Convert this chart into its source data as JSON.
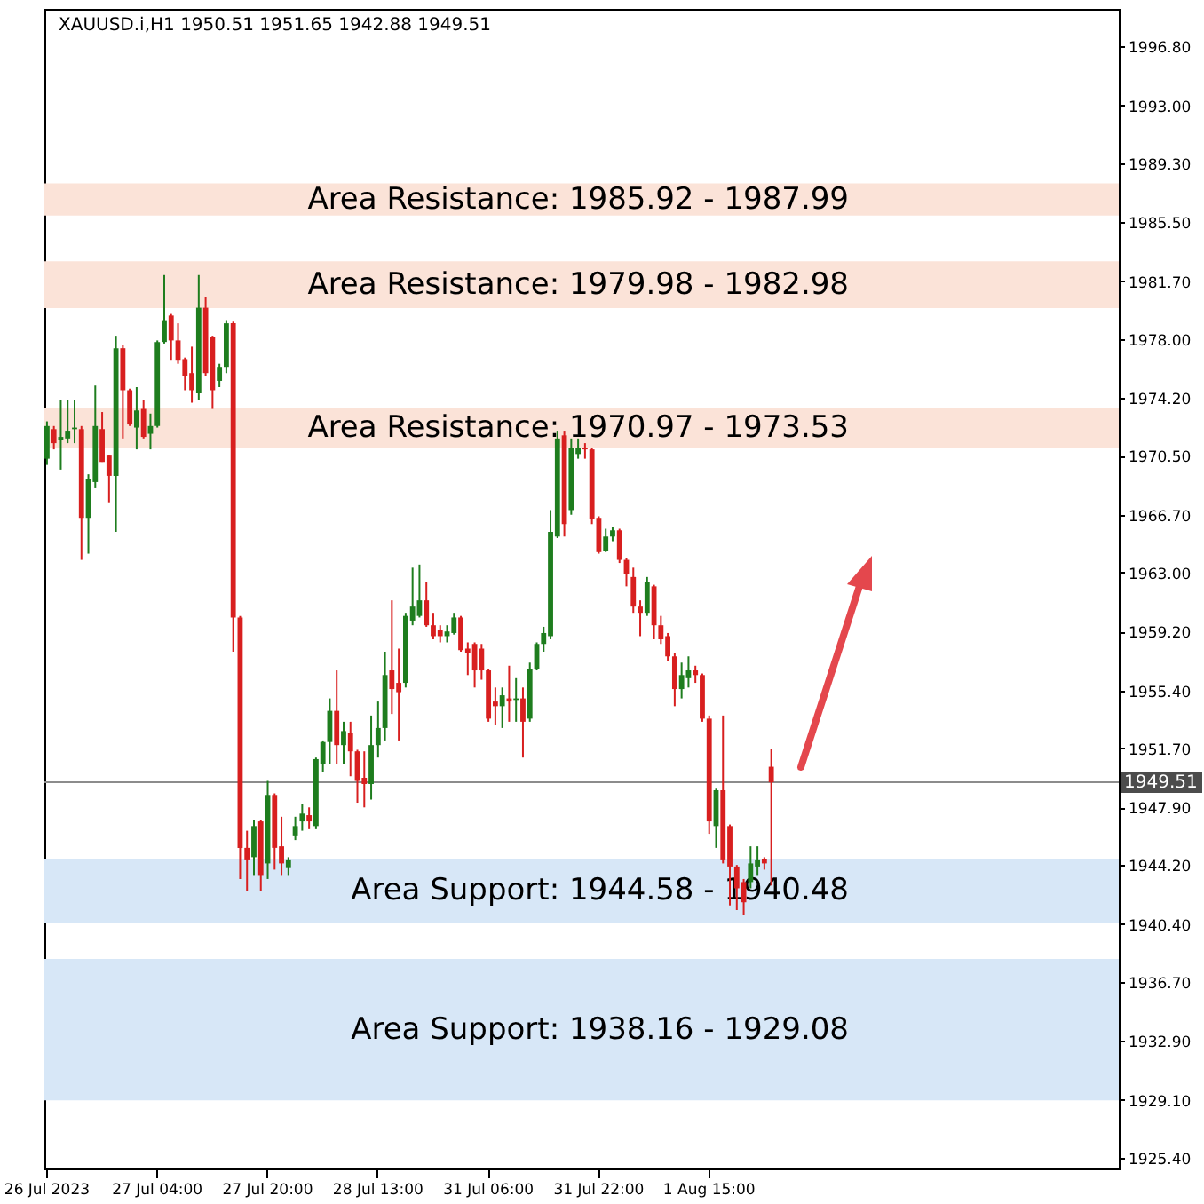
{
  "chart_data": {
    "type": "candlestick",
    "title": "XAUUSD.i,H1  1950.51 1951.65 1942.88 1949.51",
    "categories": [
      "26 Jul 2023",
      null,
      null,
      null,
      null,
      null,
      null,
      null,
      null,
      null,
      null,
      null,
      null,
      null,
      null,
      null,
      "27 Jul 04:00",
      null,
      null,
      null,
      null,
      null,
      null,
      null,
      null,
      null,
      null,
      null,
      null,
      null,
      null,
      null,
      "27 Jul 20:00",
      null,
      null,
      null,
      null,
      null,
      null,
      null,
      null,
      null,
      null,
      null,
      null,
      null,
      null,
      null,
      "28 Jul 13:00",
      null,
      null,
      null,
      null,
      null,
      null,
      null,
      null,
      null,
      null,
      null,
      null,
      null,
      null,
      null,
      "31 Jul 06:00",
      null,
      null,
      null,
      null,
      null,
      null,
      null,
      null,
      null,
      null,
      null,
      null,
      null,
      null,
      null,
      "31 Jul 22:00",
      null,
      null,
      null,
      null,
      null,
      null,
      null,
      null,
      null,
      null,
      null,
      null,
      null,
      null,
      null,
      "1 Aug 15:00",
      null,
      null,
      null,
      null,
      null,
      null,
      null,
      null,
      null,
      null,
      null,
      null,
      null,
      null,
      null,
      null,
      null,
      null,
      null,
      null,
      null,
      null,
      null,
      null,
      null,
      null,
      null,
      null,
      null,
      null,
      null,
      null,
      null,
      null,
      null,
      null,
      null,
      null,
      null,
      null,
      null,
      null,
      null,
      null,
      null,
      null,
      null,
      null,
      null,
      null,
      null,
      null,
      null,
      null,
      null,
      null,
      null,
      null,
      null
    ],
    "ohlc": [
      [
        1970.3,
        1972.7,
        1969.9,
        1972.4
      ],
      [
        1972.2,
        1972.4,
        1970.9,
        1971.3
      ],
      [
        1971.5,
        1974.1,
        1969.6,
        1971.7
      ],
      [
        1971.6,
        1974.1,
        1971.3,
        1972.1
      ],
      [
        1972.2,
        1974.1,
        1971.3,
        1972.3
      ],
      [
        1972.2,
        1972.4,
        1963.8,
        1966.5
      ],
      [
        1966.5,
        1969.3,
        1964.2,
        1969.0
      ],
      [
        1968.8,
        1975.0,
        1968.4,
        1972.4
      ],
      [
        1972.2,
        1973.3,
        1970.1,
        1970.1
      ],
      [
        1970.5,
        1970.5,
        1967.5,
        1969.2
      ],
      [
        1969.2,
        1978.2,
        1965.6,
        1977.4
      ],
      [
        1977.4,
        1977.6,
        1971.6,
        1974.7
      ],
      [
        1974.7,
        1974.8,
        1972.4,
        1972.5
      ],
      [
        1972.3,
        1974.9,
        1970.9,
        1973.4
      ],
      [
        1973.5,
        1974.1,
        1971.6,
        1971.7
      ],
      [
        1971.9,
        1973.2,
        1970.9,
        1972.4
      ],
      [
        1972.4,
        1977.9,
        1972.3,
        1977.8
      ],
      [
        1977.8,
        1982.1,
        1977.7,
        1979.2
      ],
      [
        1979.5,
        1979.6,
        1976.6,
        1977.9
      ],
      [
        1977.9,
        1979.0,
        1976.4,
        1976.6
      ],
      [
        1976.7,
        1976.8,
        1974.7,
        1975.6
      ],
      [
        1975.8,
        1977.5,
        1973.9,
        1974.7
      ],
      [
        1974.5,
        1982.1,
        1974.1,
        1980.0
      ],
      [
        1980.0,
        1980.7,
        1975.6,
        1975.8
      ],
      [
        1978.1,
        1978.2,
        1973.5,
        1974.7
      ],
      [
        1975.3,
        1976.4,
        1974.9,
        1976.2
      ],
      [
        1976.2,
        1979.2,
        1975.8,
        1979.0
      ],
      [
        1979.0,
        1979.1,
        1957.9,
        1960.1
      ],
      [
        1960.1,
        1960.2,
        1943.3,
        1945.3
      ],
      [
        1945.3,
        1946.4,
        1942.5,
        1944.5
      ],
      [
        1944.7,
        1947.1,
        1943.5,
        1946.7
      ],
      [
        1947.0,
        1947.1,
        1942.5,
        1943.5
      ],
      [
        1944.3,
        1949.6,
        1943.3,
        1948.7
      ],
      [
        1948.7,
        1948.8,
        1943.9,
        1945.3
      ],
      [
        1945.4,
        1947.3,
        1943.5,
        1944.3
      ],
      [
        1944.0,
        1944.7,
        1943.5,
        1944.5
      ],
      [
        1946.1,
        1947.3,
        1945.8,
        1946.7
      ],
      [
        1947.0,
        1948.1,
        1946.4,
        1947.5
      ],
      [
        1947.4,
        1947.9,
        1946.5,
        1947.0
      ],
      [
        1946.7,
        1951.1,
        1946.5,
        1951.0
      ],
      [
        1950.7,
        1952.2,
        1950.2,
        1952.1
      ],
      [
        1952.1,
        1954.9,
        1950.7,
        1954.1
      ],
      [
        1954.1,
        1956.7,
        1950.7,
        1951.9
      ],
      [
        1951.9,
        1953.4,
        1950.7,
        1952.8
      ],
      [
        1952.7,
        1953.4,
        1949.9,
        1951.5
      ],
      [
        1951.5,
        1951.6,
        1948.2,
        1949.6
      ],
      [
        1949.8,
        1951.5,
        1947.9,
        1949.4
      ],
      [
        1949.4,
        1953.8,
        1948.4,
        1951.9
      ],
      [
        1951.9,
        1954.7,
        1951.1,
        1953.0
      ],
      [
        1953.0,
        1957.9,
        1952.2,
        1956.4
      ],
      [
        1956.7,
        1961.2,
        1953.9,
        1955.5
      ],
      [
        1955.9,
        1958.1,
        1952.2,
        1955.3
      ],
      [
        1955.9,
        1960.4,
        1955.6,
        1960.2
      ],
      [
        1959.9,
        1963.3,
        1959.6,
        1960.8
      ],
      [
        1960.2,
        1963.5,
        1960.1,
        1961.2
      ],
      [
        1961.2,
        1962.4,
        1959.5,
        1959.6
      ],
      [
        1959.6,
        1960.4,
        1958.7,
        1958.9
      ],
      [
        1959.3,
        1959.6,
        1958.5,
        1958.9
      ],
      [
        1958.9,
        1959.6,
        1958.5,
        1959.2
      ],
      [
        1959.1,
        1960.4,
        1959.0,
        1960.1
      ],
      [
        1960.1,
        1960.2,
        1957.9,
        1958.0
      ],
      [
        1958.1,
        1958.5,
        1956.4,
        1957.8
      ],
      [
        1958.4,
        1958.5,
        1955.6,
        1956.7
      ],
      [
        1958.1,
        1958.4,
        1956.1,
        1956.7
      ],
      [
        1956.7,
        1956.8,
        1953.4,
        1953.6
      ],
      [
        1954.7,
        1955.6,
        1953.2,
        1954.4
      ],
      [
        1954.4,
        1955.6,
        1953.0,
        1955.1
      ],
      [
        1954.9,
        1957.0,
        1953.4,
        1954.7
      ],
      [
        1954.8,
        1956.2,
        1953.4,
        1954.9
      ],
      [
        1954.9,
        1955.6,
        1951.1,
        1953.4
      ],
      [
        1953.6,
        1957.2,
        1953.4,
        1956.8
      ],
      [
        1956.8,
        1958.5,
        1956.7,
        1958.4
      ],
      [
        1958.4,
        1959.5,
        1957.9,
        1959.1
      ],
      [
        1958.9,
        1967.0,
        1958.7,
        1965.6
      ],
      [
        1965.3,
        1972.1,
        1965.2,
        1971.6
      ],
      [
        1971.8,
        1972.1,
        1965.3,
        1966.1
      ],
      [
        1967.0,
        1971.6,
        1966.7,
        1971.0
      ],
      [
        1970.6,
        1971.6,
        1970.3,
        1971.0
      ],
      [
        1971.0,
        1971.3,
        1970.3,
        1970.9
      ],
      [
        1970.9,
        1971.0,
        1966.1,
        1966.4
      ],
      [
        1966.5,
        1966.6,
        1964.2,
        1964.3
      ],
      [
        1964.4,
        1965.8,
        1964.3,
        1965.3
      ],
      [
        1965.3,
        1965.9,
        1965.0,
        1965.7
      ],
      [
        1965.7,
        1965.8,
        1963.6,
        1963.8
      ],
      [
        1963.8,
        1963.9,
        1962.1,
        1962.9
      ],
      [
        1962.7,
        1963.3,
        1960.4,
        1960.8
      ],
      [
        1960.8,
        1961.2,
        1958.9,
        1960.4
      ],
      [
        1960.4,
        1962.7,
        1960.2,
        1962.4
      ],
      [
        1962.1,
        1962.2,
        1958.7,
        1959.6
      ],
      [
        1959.6,
        1960.2,
        1958.4,
        1958.7
      ],
      [
        1958.9,
        1959.1,
        1957.3,
        1957.6
      ],
      [
        1957.6,
        1957.8,
        1954.4,
        1955.5
      ],
      [
        1955.5,
        1957.2,
        1954.9,
        1956.4
      ],
      [
        1956.2,
        1957.6,
        1955.6,
        1956.7
      ],
      [
        1956.7,
        1957.0,
        1955.9,
        1956.4
      ],
      [
        1956.4,
        1956.5,
        1953.4,
        1953.6
      ],
      [
        1953.6,
        1953.8,
        1946.2,
        1947.0
      ],
      [
        1946.7,
        1949.1,
        1945.3,
        1949.0
      ],
      [
        1949.0,
        1953.8,
        1944.3,
        1944.5
      ],
      [
        1946.7,
        1946.8,
        1941.6,
        1944.1
      ],
      [
        1944.1,
        1944.2,
        1941.3,
        1942.7
      ],
      [
        1943.1,
        1943.3,
        1941.0,
        1941.8
      ],
      [
        1943.1,
        1945.4,
        1942.7,
        1944.3
      ],
      [
        1944.1,
        1945.4,
        1943.5,
        1944.5
      ],
      [
        1944.6,
        1944.7,
        1943.9,
        1944.3
      ],
      [
        1950.51,
        1951.65,
        1942.88,
        1949.51
      ],
      null,
      null,
      null,
      null,
      null,
      null,
      null,
      null,
      null,
      null,
      null,
      null,
      null,
      null,
      null,
      null,
      null,
      null,
      null,
      null,
      null,
      null,
      null,
      null,
      null,
      null,
      null,
      null,
      null,
      null,
      null,
      null,
      null,
      null,
      null,
      null,
      null,
      null,
      null,
      null,
      null,
      null,
      null,
      null,
      null,
      null,
      null,
      null,
      null,
      null
    ],
    "colors": [
      "#1e7d1e",
      "#d81f1f",
      "#1e7d1e",
      "#1e7d1e",
      "#1e7d1e",
      "#d81f1f",
      "#1e7d1e",
      "#1e7d1e",
      "#d81f1f",
      "#d81f1f",
      "#1e7d1e",
      "#d81f1f",
      "#d81f1f",
      "#1e7d1e",
      "#d81f1f",
      "#1e7d1e",
      "#1e7d1e",
      "#1e7d1e",
      "#d81f1f",
      "#d81f1f",
      "#d81f1f",
      "#d81f1f",
      "#1e7d1e",
      "#d81f1f",
      "#d81f1f",
      "#1e7d1e",
      "#1e7d1e",
      "#d81f1f",
      "#d81f1f",
      "#d81f1f",
      "#1e7d1e",
      "#d81f1f",
      "#1e7d1e",
      "#d81f1f",
      "#d81f1f",
      "#1e7d1e",
      "#1e7d1e",
      "#1e7d1e",
      "#d81f1f",
      "#1e7d1e",
      "#1e7d1e",
      "#1e7d1e",
      "#d81f1f",
      "#1e7d1e",
      "#d81f1f",
      "#d81f1f",
      "#d81f1f",
      "#1e7d1e",
      "#1e7d1e",
      "#1e7d1e",
      "#d81f1f",
      "#d81f1f",
      "#1e7d1e",
      "#1e7d1e",
      "#1e7d1e",
      "#d81f1f",
      "#d81f1f",
      "#d81f1f",
      "#1e7d1e",
      "#1e7d1e",
      "#d81f1f",
      "#d81f1f",
      "#d81f1f",
      "#d81f1f",
      "#d81f1f",
      "#d81f1f",
      "#1e7d1e",
      "#d81f1f",
      "#1e7d1e",
      "#d81f1f",
      "#1e7d1e",
      "#1e7d1e",
      "#1e7d1e",
      "#1e7d1e",
      "#1e7d1e",
      "#d81f1f",
      "#1e7d1e",
      "#1e7d1e",
      "#d81f1f",
      "#d81f1f",
      "#d81f1f",
      "#1e7d1e",
      "#1e7d1e",
      "#d81f1f",
      "#d81f1f",
      "#d81f1f",
      "#d81f1f",
      "#1e7d1e",
      "#d81f1f",
      "#d81f1f",
      "#d81f1f",
      "#d81f1f",
      "#1e7d1e",
      "#1e7d1e",
      "#d81f1f",
      "#d81f1f",
      "#d81f1f",
      "#1e7d1e",
      "#d81f1f",
      "#d81f1f",
      "#d81f1f",
      "#d81f1f",
      "#1e7d1e",
      "#1e7d1e",
      "#d81f1f",
      "#d81f1f",
      null,
      null,
      null,
      null,
      null,
      null,
      null,
      null,
      null,
      null,
      null,
      null,
      null,
      null,
      null,
      null,
      null,
      null,
      null,
      null,
      null,
      null,
      null,
      null,
      null,
      null,
      null,
      null,
      null,
      null,
      null,
      null,
      null,
      null,
      null,
      null,
      null,
      null,
      null,
      null,
      null,
      null,
      null,
      null,
      null,
      null,
      null,
      null,
      null,
      null
    ],
    "ylim": [
      1924.7,
      1999.2
    ],
    "yticks": [
      {
        "value": 1996.8,
        "label": "1996.80"
      },
      {
        "value": 1993,
        "label": "1993.00"
      },
      {
        "value": 1989.3,
        "label": "1989.30"
      },
      {
        "value": 1985.5,
        "label": "1985.50"
      },
      {
        "value": 1981.7,
        "label": "1981.70"
      },
      {
        "value": 1978,
        "label": "1978.00"
      },
      {
        "value": 1974.2,
        "label": "1974.20"
      },
      {
        "value": 1970.5,
        "label": "1970.50"
      },
      {
        "value": 1966.7,
        "label": "1966.70"
      },
      {
        "value": 1963,
        "label": "1963.00"
      },
      {
        "value": 1959.2,
        "label": "1959.20"
      },
      {
        "value": 1955.4,
        "label": "1955.40"
      },
      {
        "value": 1951.7,
        "label": "1951.70"
      },
      {
        "value": 1947.9,
        "label": "1947.90"
      },
      {
        "value": 1944.2,
        "label": "1944.20"
      },
      {
        "value": 1940.4,
        "label": "1940.40"
      },
      {
        "value": 1936.7,
        "label": "1936.70"
      },
      {
        "value": 1932.9,
        "label": "1932.90"
      },
      {
        "value": 1929.1,
        "label": "1929.10"
      },
      {
        "value": 1925.4,
        "label": "1925.40"
      }
    ],
    "bands": [
      {
        "axis": "y",
        "from": 1985.92,
        "to": 1987.99,
        "label": "Area Resistance: 1985.92 - 1987.99",
        "color": "#fbe3d8"
      },
      {
        "axis": "y",
        "from": 1979.98,
        "to": 1982.98,
        "label": "Area Resistance: 1979.98 - 1982.98",
        "color": "#fbe3d8"
      },
      {
        "axis": "y",
        "from": 1970.97,
        "to": 1973.53,
        "label": "Area Resistance: 1970.97 - 1973.53",
        "color": "#fbe3d8"
      },
      {
        "axis": "y",
        "from": 1940.48,
        "to": 1944.58,
        "label": "Area Support: 1944.58 - 1940.48",
        "color": "#d7e7f7"
      },
      {
        "axis": "y",
        "from": 1929.08,
        "to": 1938.16,
        "label": "Area Support: 1938.16 - 1929.08",
        "color": "#d7e7f7"
      }
    ],
    "ref_lines": [
      {
        "axis": "y",
        "value": 1949.51,
        "label": "1949.51",
        "color": "#8c8c8c"
      }
    ]
  }
}
